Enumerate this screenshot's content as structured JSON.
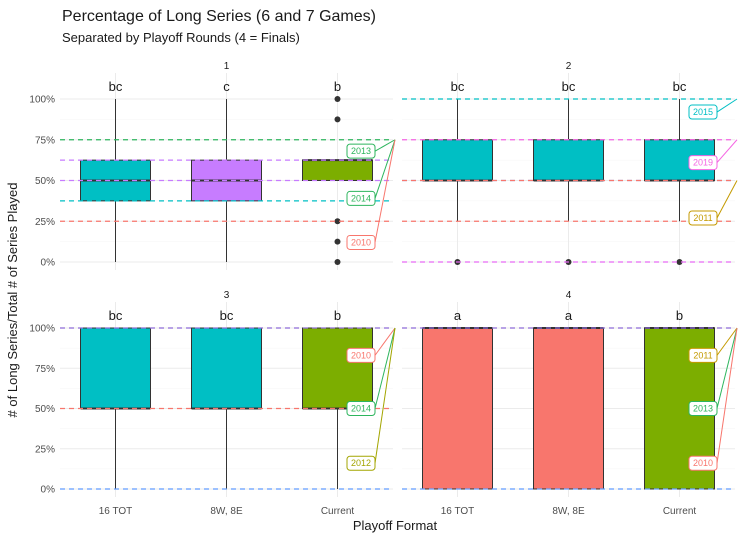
{
  "chart_data": {
    "type": "boxplot",
    "title": "Percentage of Long Series (6 and 7 Games)",
    "subtitle": "Separated by Playoff Rounds (4 = Finals)",
    "xlabel": "Playoff Format",
    "ylabel": "# of Long Series/Total # of Series Played",
    "categories": [
      "16 TOT",
      "8W, 8E",
      "Current"
    ],
    "ylim": [
      0,
      1
    ],
    "y_ticks": [
      "0%",
      "25%",
      "50%",
      "75%",
      "100%"
    ],
    "grid": true,
    "facet_colors": {
      "1": [
        "#00BFC4",
        "#C77CFF",
        "#7CAE00"
      ],
      "2": [
        "#00BFC4",
        "#00BFC4",
        "#00BFC4"
      ],
      "3": [
        "#00BFC4",
        "#00BFC4",
        "#7CAE00"
      ],
      "4": [
        "#F8766D",
        "#F8766D",
        "#7CAE00"
      ]
    },
    "facets": [
      {
        "name": "1",
        "boxes": [
          {
            "category": "16 TOT",
            "letter": "bc",
            "min": 0,
            "q1": 0.375,
            "median": 0.5,
            "q3": 0.625,
            "max": 1,
            "outliers": []
          },
          {
            "category": "8W, 8E",
            "letter": "c",
            "min": 0,
            "q1": 0.375,
            "median": 0.5,
            "q3": 0.625,
            "max": 1,
            "outliers": []
          },
          {
            "category": "Current",
            "letter": "b",
            "min": 0.5,
            "q1": 0.5,
            "median": 0.625,
            "q3": 0.625,
            "max": 0.625,
            "outliers": [
              0,
              0.125,
              0.25,
              0.875,
              1
            ]
          }
        ],
        "hlines": [
          {
            "value": 0.75,
            "color": "#2DB55D",
            "label": "2013"
          },
          {
            "value": 0.625,
            "color": "#C77CFF",
            "label": ""
          },
          {
            "value": 0.5,
            "color": "#C77CFF",
            "label": ""
          },
          {
            "value": 0.375,
            "color": "#00BFC4",
            "label": "2014"
          },
          {
            "value": 0.25,
            "color": "#F8766D",
            "label": "2010"
          }
        ],
        "year_labels": [
          {
            "label": "2013",
            "color": "#2DB55D",
            "target": 0.75,
            "pos": 0.68
          },
          {
            "label": "2014",
            "color": "#2DB55D",
            "target": 0.75,
            "pos": 0.39
          },
          {
            "label": "2010",
            "color": "#F8766D",
            "target": 0.75,
            "pos": 0.12
          }
        ]
      },
      {
        "name": "2",
        "boxes": [
          {
            "category": "16 TOT",
            "letter": "bc",
            "min": 0.25,
            "q1": 0.5,
            "median": 0.5,
            "q3": 0.75,
            "max": 1,
            "outliers": [
              0
            ]
          },
          {
            "category": "8W, 8E",
            "letter": "bc",
            "min": 0.25,
            "q1": 0.5,
            "median": 0.5,
            "q3": 0.75,
            "max": 1,
            "outliers": [
              0
            ]
          },
          {
            "category": "Current",
            "letter": "bc",
            "min": 0.25,
            "q1": 0.5,
            "median": 0.5,
            "q3": 0.75,
            "max": 1,
            "outliers": [
              0
            ]
          }
        ],
        "hlines": [
          {
            "value": 1.0,
            "color": "#00BFC4",
            "label": "2015"
          },
          {
            "value": 0.75,
            "color": "#F564E3",
            "label": "2019"
          },
          {
            "value": 0.5,
            "color": "#619CFF",
            "label": ""
          },
          {
            "value": 0.5,
            "color": "#F8766D",
            "label": ""
          },
          {
            "value": 0.25,
            "color": "#F8766D",
            "label": "2011"
          },
          {
            "value": 0.0,
            "color": "#E76BF3",
            "label": ""
          }
        ],
        "year_labels": [
          {
            "label": "2015",
            "color": "#00BFC4",
            "target": 1.0,
            "pos": 0.92
          },
          {
            "label": "2019",
            "color": "#F564E3",
            "target": 0.75,
            "pos": 0.61
          },
          {
            "label": "2011",
            "color": "#C49A00",
            "target": 0.5,
            "pos": 0.27
          }
        ]
      },
      {
        "name": "3",
        "boxes": [
          {
            "category": "16 TOT",
            "letter": "bc",
            "min": 0,
            "q1": 0.5,
            "median": 0.5,
            "q3": 1,
            "max": 1,
            "outliers": []
          },
          {
            "category": "8W, 8E",
            "letter": "bc",
            "min": 0,
            "q1": 0.5,
            "median": 0.5,
            "q3": 1,
            "max": 1,
            "outliers": []
          },
          {
            "category": "Current",
            "letter": "b",
            "min": 0,
            "q1": 0.5,
            "median": 0.5,
            "q3": 1,
            "max": 1,
            "outliers": []
          }
        ],
        "hlines": [
          {
            "value": 1.0,
            "color": "#8E6BD8",
            "label": ""
          },
          {
            "value": 0.5,
            "color": "#F8766D",
            "label": ""
          },
          {
            "value": 0.0,
            "color": "#619CFF",
            "label": ""
          }
        ],
        "year_labels": [
          {
            "label": "2010",
            "color": "#F8766D",
            "target": 1.0,
            "pos": 0.83
          },
          {
            "label": "2014",
            "color": "#2DB55D",
            "target": 1.0,
            "pos": 0.5
          },
          {
            "label": "2012",
            "color": "#A3A500",
            "target": 1.0,
            "pos": 0.16
          }
        ]
      },
      {
        "name": "4",
        "boxes": [
          {
            "category": "16 TOT",
            "letter": "a",
            "min": 0,
            "q1": 0,
            "median": 1,
            "q3": 1,
            "max": 1,
            "outliers": []
          },
          {
            "category": "8W, 8E",
            "letter": "a",
            "min": 0,
            "q1": 0,
            "median": 1,
            "q3": 1,
            "max": 1,
            "outliers": []
          },
          {
            "category": "Current",
            "letter": "b",
            "min": 0,
            "q1": 0,
            "median": 1,
            "q3": 1,
            "max": 1,
            "outliers": []
          }
        ],
        "hlines": [
          {
            "value": 1.0,
            "color": "#8E6BD8",
            "label": ""
          },
          {
            "value": 0.0,
            "color": "#619CFF",
            "label": ""
          }
        ],
        "year_labels": [
          {
            "label": "2011",
            "color": "#C49A00",
            "target": 1.0,
            "pos": 0.83
          },
          {
            "label": "2013",
            "color": "#2DB55D",
            "target": 1.0,
            "pos": 0.5
          },
          {
            "label": "2010",
            "color": "#F8766D",
            "target": 1.0,
            "pos": 0.16
          }
        ]
      }
    ]
  }
}
